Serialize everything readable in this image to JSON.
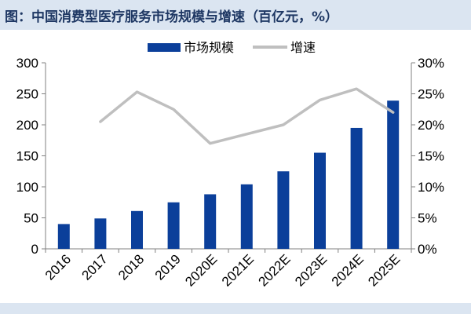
{
  "title": "图：中国消费型医疗服务市场规模与增速（百亿元，%）",
  "chart_data": {
    "type": "bar",
    "categories": [
      "2016",
      "2017",
      "2018",
      "2019",
      "2020E",
      "2021E",
      "2022E",
      "2023E",
      "2024E",
      "2025E"
    ],
    "series": [
      {
        "name": "市场规模",
        "type": "bar",
        "axis": "left",
        "color": "#0b3f9a",
        "values": [
          40,
          49,
          61,
          75,
          88,
          104,
          125,
          155,
          195,
          239
        ]
      },
      {
        "name": "增速",
        "type": "line",
        "axis": "right",
        "color": "#bfbfbf",
        "values": [
          null,
          20.5,
          25.3,
          22.5,
          17.0,
          18.5,
          20.0,
          24.0,
          25.8,
          22.0
        ]
      }
    ],
    "y_left": {
      "min": 0,
      "max": 300,
      "ticks": [
        0,
        50,
        100,
        150,
        200,
        250,
        300
      ]
    },
    "y_right": {
      "min": 0,
      "max": 30,
      "ticks": [
        "0%",
        "5%",
        "10%",
        "15%",
        "20%",
        "25%",
        "30%"
      ]
    },
    "legend_position": "top",
    "grid": false
  }
}
